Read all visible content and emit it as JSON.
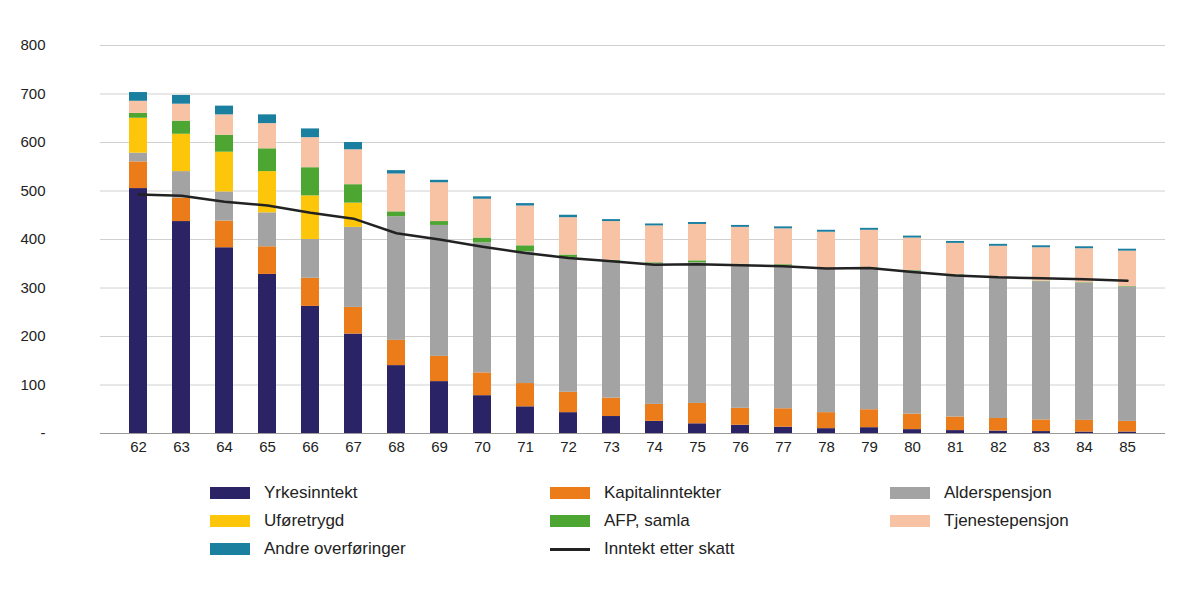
{
  "chart_data": {
    "type": "bar",
    "stacked": true,
    "grid": true,
    "categories": [
      62,
      63,
      64,
      65,
      66,
      67,
      68,
      69,
      70,
      71,
      72,
      73,
      74,
      75,
      76,
      77,
      78,
      79,
      80,
      81,
      82,
      83,
      84,
      85
    ],
    "ylim": [
      0,
      800
    ],
    "yticks": [
      {
        "value": 0,
        "label": "-"
      },
      100,
      200,
      300,
      400,
      500,
      600,
      700,
      800
    ],
    "series": [
      {
        "name": "Yrkesinntekt",
        "type": "bar",
        "color": "#2a2366",
        "values": [
          505,
          437,
          383,
          328,
          262,
          205,
          140,
          107,
          78,
          55,
          43,
          35,
          25,
          20,
          17,
          13,
          10,
          12,
          8,
          6,
          5,
          4,
          3,
          3
        ]
      },
      {
        "name": "Kapitalinntekter",
        "type": "bar",
        "color": "#ec7b1a",
        "values": [
          55,
          48,
          55,
          57,
          58,
          55,
          52,
          52,
          47,
          48,
          42,
          38,
          35,
          42,
          35,
          38,
          33,
          37,
          32,
          28,
          26,
          24,
          24,
          22
        ]
      },
      {
        "name": "Alderspensjon",
        "type": "bar",
        "color": "#a3a3a3",
        "values": [
          18,
          55,
          60,
          70,
          80,
          165,
          255,
          270,
          268,
          272,
          278,
          282,
          290,
          290,
          295,
          295,
          297,
          292,
          295,
          293,
          290,
          285,
          283,
          277
        ]
      },
      {
        "name": "Uføretrygd",
        "type": "bar",
        "color": "#fdc60a",
        "values": [
          72,
          77,
          82,
          85,
          90,
          50,
          0,
          0,
          0,
          0,
          0,
          0,
          0,
          0,
          0,
          0,
          0,
          0,
          0,
          0,
          0,
          0,
          0,
          0
        ]
      },
      {
        "name": "AFP, samla",
        "type": "bar",
        "color": "#4da632",
        "values": [
          10,
          27,
          35,
          47,
          58,
          38,
          10,
          8,
          10,
          12,
          5,
          2,
          2,
          4,
          2,
          2,
          1,
          1,
          1,
          1,
          1,
          1,
          1,
          1
        ]
      },
      {
        "name": "Tjenestepensjon",
        "type": "bar",
        "color": "#f8c2a5",
        "values": [
          25,
          35,
          42,
          52,
          62,
          72,
          78,
          80,
          80,
          82,
          77,
          80,
          76,
          75,
          76,
          74,
          74,
          77,
          67,
          64,
          64,
          69,
          70,
          73
        ]
      },
      {
        "name": "Andre overføringer",
        "type": "bar",
        "color": "#1b7fa0",
        "values": [
          18,
          18,
          18,
          18,
          18,
          15,
          7,
          5,
          5,
          5,
          5,
          4,
          4,
          4,
          4,
          4,
          4,
          4,
          4,
          4,
          4,
          4,
          4,
          4
        ]
      },
      {
        "name": "Inntekt etter skatt",
        "type": "line",
        "color": "#222222",
        "values": [
          493,
          490,
          478,
          470,
          455,
          443,
          413,
          400,
          385,
          372,
          362,
          355,
          348,
          349,
          347,
          345,
          340,
          341,
          333,
          326,
          322,
          320,
          318,
          315
        ]
      }
    ]
  }
}
